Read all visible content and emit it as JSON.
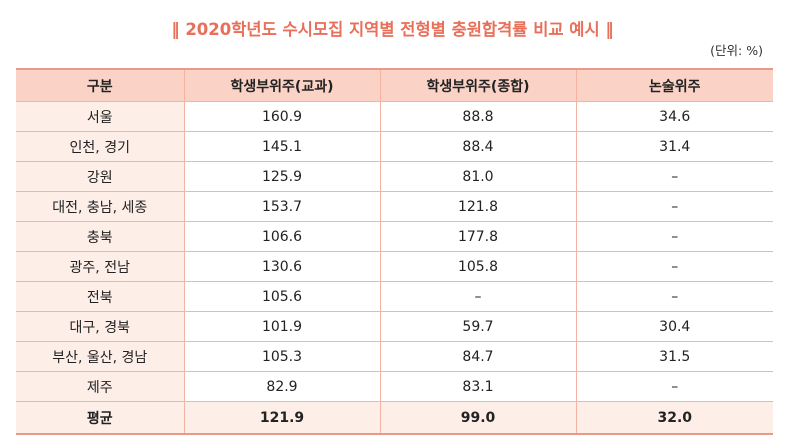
{
  "title": "‖ 2020학년도 수시모집 지역별 전형별 충원합격률 비교 예시 ‖",
  "unit": "(단위: %)",
  "table": {
    "headers": [
      "구분",
      "학생부위주(교과)",
      "학생부위주(종합)",
      "논술위주"
    ],
    "rows": [
      [
        "서울",
        "160.9",
        "88.8",
        "34.6"
      ],
      [
        "인천, 경기",
        "145.1",
        "88.4",
        "31.4"
      ],
      [
        "강원",
        "125.9",
        "81.0",
        "–"
      ],
      [
        "대전, 충남, 세종",
        "153.7",
        "121.8",
        "–"
      ],
      [
        "충북",
        "106.6",
        "177.8",
        "–"
      ],
      [
        "광주, 전남",
        "130.6",
        "105.8",
        "–"
      ],
      [
        "전북",
        "105.6",
        "–",
        "–"
      ],
      [
        "대구, 경북",
        "101.9",
        "59.7",
        "30.4"
      ],
      [
        "부산, 울산, 경남",
        "105.3",
        "84.7",
        "31.5"
      ],
      [
        "제주",
        "82.9",
        "83.1",
        "–"
      ]
    ],
    "average": [
      "평균",
      "121.9",
      "99.0",
      "32.0"
    ]
  }
}
